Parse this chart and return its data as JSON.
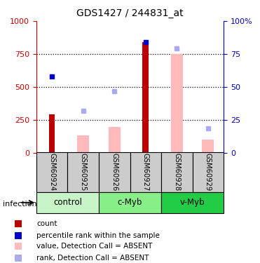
{
  "title": "GDS1427 / 244831_at",
  "samples": [
    "GSM60924",
    "GSM60925",
    "GSM60926",
    "GSM60927",
    "GSM60928",
    "GSM60929"
  ],
  "count_values": [
    290,
    null,
    null,
    840,
    null,
    null
  ],
  "value_absent": [
    null,
    130,
    195,
    null,
    750,
    100
  ],
  "rank_absent": [
    null,
    320,
    465,
    null,
    790,
    185
  ],
  "percentile_rank": [
    580,
    null,
    null,
    840,
    null,
    null
  ],
  "ylim": [
    0,
    1000
  ],
  "y2lim": [
    0,
    100
  ],
  "yticks": [
    0,
    250,
    500,
    750,
    1000
  ],
  "y2ticks": [
    0,
    25,
    50,
    75,
    100
  ],
  "groups": [
    {
      "label": "control",
      "indices": [
        0,
        1
      ],
      "color": "#c8f5c8"
    },
    {
      "label": "c-Myb",
      "indices": [
        2,
        3
      ],
      "color": "#88ee88"
    },
    {
      "label": "v-Myb",
      "indices": [
        4,
        5
      ],
      "color": "#22cc44"
    }
  ],
  "group_label": "infection",
  "bar_width": 0.35,
  "dark_red": "#bb0000",
  "pink": "#ffbbbb",
  "dark_blue": "#0000cc",
  "light_blue": "#aaaaee",
  "tick_color_left": "#cc0000",
  "tick_color_right": "#0000bb",
  "sample_area_color": "#cccccc",
  "legend_items": [
    {
      "color": "#bb0000",
      "label": "count"
    },
    {
      "color": "#0000cc",
      "label": "percentile rank within the sample"
    },
    {
      "color": "#ffbbbb",
      "label": "value, Detection Call = ABSENT"
    },
    {
      "color": "#aaaaee",
      "label": "rank, Detection Call = ABSENT"
    }
  ]
}
